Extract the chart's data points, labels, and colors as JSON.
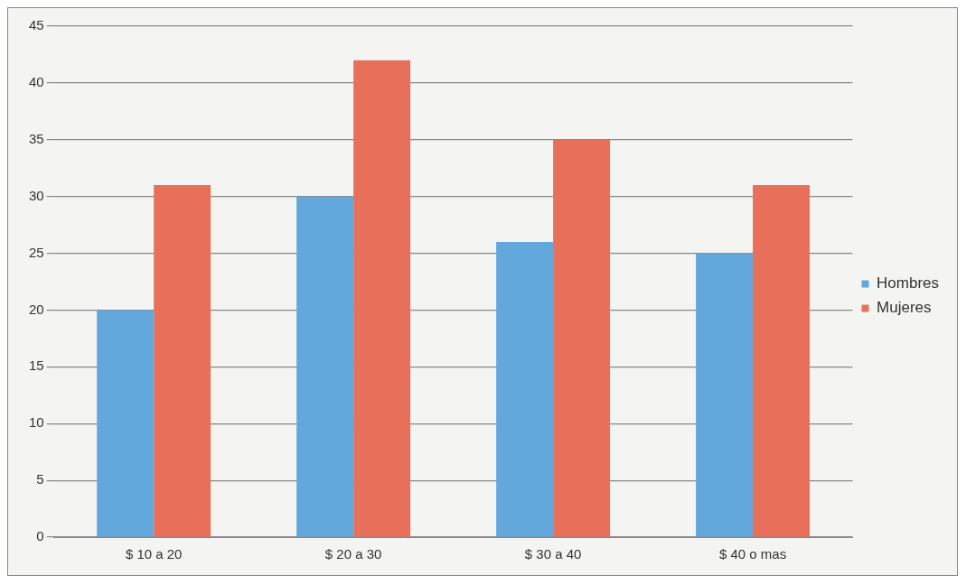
{
  "chart_data": {
    "type": "bar",
    "categories": [
      "$ 10 a 20",
      "$ 20 a 30",
      "$ 30 a 40",
      "$ 40 o mas"
    ],
    "series": [
      {
        "name": "Hombres",
        "color": "#62a8dc",
        "values": [
          20,
          30,
          26,
          25
        ]
      },
      {
        "name": "Mujeres",
        "color": "#e8705a",
        "values": [
          31,
          42,
          35,
          31
        ]
      }
    ],
    "ylim": [
      0,
      45
    ],
    "yticks": [
      0,
      5,
      10,
      15,
      20,
      25,
      30,
      35,
      40,
      45
    ],
    "grid": "y",
    "legend": "right"
  }
}
